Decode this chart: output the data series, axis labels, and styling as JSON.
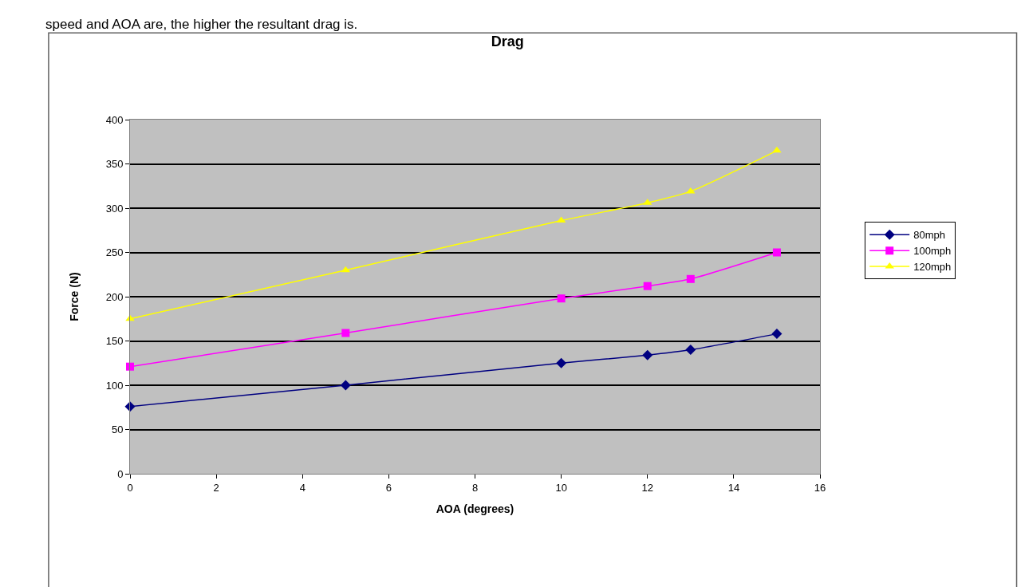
{
  "chart_data": {
    "type": "line",
    "title": "Drag",
    "xlabel": "AOA (degrees)",
    "ylabel": "Force (N)",
    "annotations": [
      "speed and AOA are, the higher the resultant drag is."
    ],
    "x": [
      0,
      5,
      10,
      12,
      13,
      15
    ],
    "series": [
      {
        "name": "80mph",
        "color": "#000080",
        "marker": "diamond",
        "values": [
          76,
          100,
          125,
          134,
          140,
          158
        ]
      },
      {
        "name": "100mph",
        "color": "#ff00ff",
        "marker": "square",
        "values": [
          121,
          159,
          198,
          212,
          220,
          250
        ]
      },
      {
        "name": "120mph",
        "color": "#ffff00",
        "marker": "triangle",
        "values": [
          175,
          230,
          286,
          306,
          319,
          365
        ]
      }
    ],
    "xlim": [
      0,
      16
    ],
    "xticks": [
      0,
      2,
      4,
      6,
      8,
      10,
      12,
      14,
      16
    ],
    "ylim": [
      0,
      400
    ],
    "yticks": [
      0,
      50,
      100,
      150,
      200,
      250,
      300,
      350,
      400
    ],
    "grid": "y",
    "legend": "right",
    "line_style": "solid"
  }
}
